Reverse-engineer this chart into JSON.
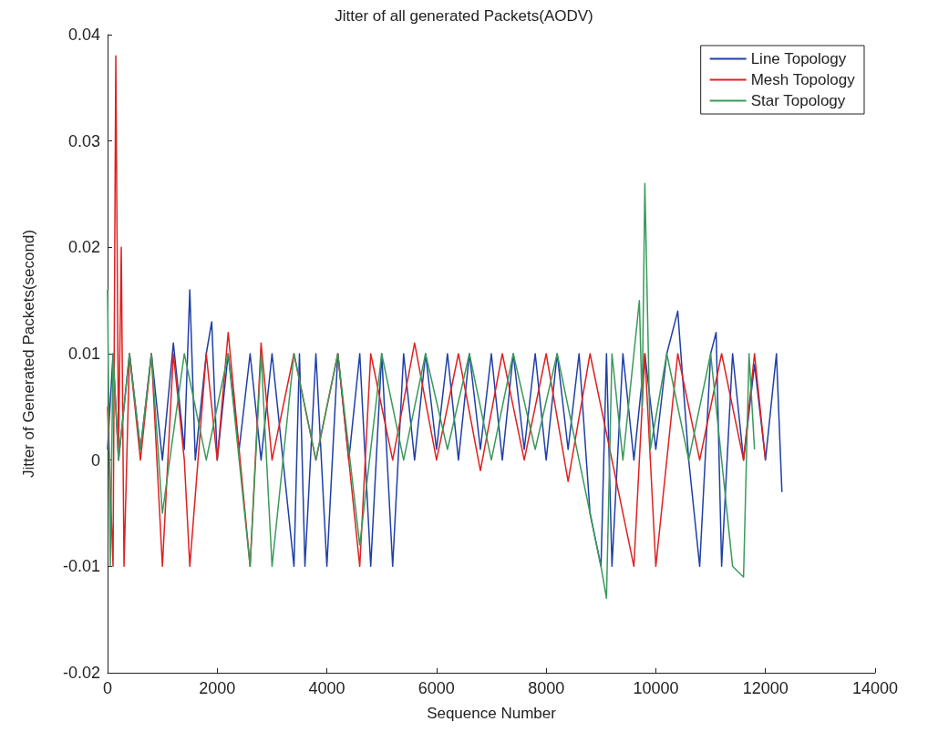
{
  "chart_data": {
    "type": "line",
    "title": "Jitter of all generated Packets(AODV)",
    "xlabel": "Sequence Number",
    "ylabel": "Jitter of Generated Packets(second)",
    "xlim": [
      0,
      14000
    ],
    "xticks": [
      0,
      2000,
      4000,
      6000,
      8000,
      10000,
      12000,
      14000
    ],
    "ylim": [
      -0.02,
      0.04
    ],
    "yticks": [
      -0.02,
      -0.01,
      0,
      0.01,
      0.02,
      0.03,
      0.04
    ],
    "grid": false,
    "legend": "top right",
    "line_style": "solid",
    "marker": "none",
    "series": [
      {
        "name": "Line Topology",
        "color": "#1f3fa8",
        "x": [
          0,
          100,
          200,
          400,
          600,
          800,
          1000,
          1200,
          1400,
          1500,
          1600,
          1800,
          1900,
          2000,
          2200,
          2400,
          2600,
          2800,
          3000,
          3200,
          3400,
          3500,
          3600,
          3800,
          4000,
          4200,
          4400,
          4600,
          4800,
          5000,
          5200,
          5400,
          5600,
          5800,
          6000,
          6200,
          6400,
          6600,
          6800,
          7000,
          7200,
          7400,
          7600,
          7800,
          8000,
          8200,
          8400,
          8600,
          8800,
          9000,
          9100,
          9200,
          9400,
          9600,
          9800,
          10000,
          10200,
          10400,
          10600,
          10800,
          11000,
          11100,
          11200,
          11400,
          11600,
          11800,
          12000,
          12200,
          12300
        ],
        "values": [
          0.001,
          0.01,
          0,
          0.01,
          0.001,
          0.01,
          0,
          0.011,
          0.001,
          0.016,
          0,
          0.01,
          0.013,
          0,
          0.01,
          0.001,
          0.01,
          0,
          0.01,
          0,
          -0.01,
          0.01,
          -0.01,
          0.01,
          -0.01,
          0.01,
          0,
          0.01,
          -0.01,
          0.01,
          -0.01,
          0.01,
          0,
          0.01,
          0.001,
          0.01,
          0,
          0.01,
          0.001,
          0.01,
          0,
          0.01,
          0.001,
          0.01,
          0,
          0.01,
          0.001,
          0.01,
          -0.005,
          -0.01,
          0.01,
          -0.01,
          0.01,
          0,
          0.01,
          0.001,
          0.01,
          0.014,
          0,
          -0.01,
          0.01,
          0.012,
          -0.01,
          0.01,
          0,
          0.009,
          0,
          0.01,
          -0.003
        ]
      },
      {
        "name": "Mesh Topology",
        "color": "#e02020",
        "x": [
          0,
          100,
          150,
          200,
          250,
          300,
          400,
          600,
          800,
          1000,
          1200,
          1400,
          1500,
          1800,
          2000,
          2200,
          2400,
          2600,
          2800,
          3000,
          3400,
          3800,
          4200,
          4600,
          4800,
          5200,
          5600,
          6000,
          6400,
          6800,
          7200,
          7600,
          8000,
          8400,
          8800,
          9200,
          9600,
          9800,
          10000,
          10400,
          10800,
          11200,
          11600,
          11800,
          12000
        ],
        "values": [
          0.005,
          -0.01,
          0.038,
          0.001,
          0.02,
          -0.01,
          0.01,
          0,
          0.01,
          -0.01,
          0.01,
          0,
          -0.01,
          0.01,
          0,
          0.012,
          0.001,
          -0.01,
          0.011,
          0,
          0.01,
          0,
          0.01,
          -0.01,
          0.01,
          0,
          0.011,
          0,
          0.01,
          -0.001,
          0.01,
          0,
          0.01,
          -0.002,
          0.01,
          0,
          -0.01,
          0.01,
          -0.01,
          0.01,
          0,
          0.01,
          0,
          0.01,
          0
        ]
      },
      {
        "name": "Star Topology",
        "color": "#3a9a5a",
        "x": [
          0,
          50,
          100,
          200,
          400,
          600,
          800,
          1000,
          1400,
          1800,
          2200,
          2600,
          2800,
          3000,
          3400,
          3800,
          4200,
          4600,
          5000,
          5400,
          5800,
          6200,
          6600,
          7000,
          7400,
          7800,
          8200,
          8600,
          9000,
          9100,
          9200,
          9400,
          9600,
          9700,
          9750,
          9800,
          9900,
          10200,
          10600,
          11000,
          11400,
          11600,
          11700,
          11800
        ],
        "values": [
          0.016,
          -0.01,
          0.01,
          0,
          0.01,
          0.001,
          0.01,
          -0.005,
          0.01,
          0,
          0.01,
          -0.01,
          0.01,
          -0.01,
          0.01,
          0,
          0.01,
          -0.008,
          0.01,
          0,
          0.01,
          0.001,
          0.01,
          0,
          0.01,
          0.001,
          0.01,
          0,
          -0.01,
          -0.013,
          0.01,
          0,
          0.01,
          0.015,
          0.005,
          0.026,
          0.001,
          0.01,
          0,
          0.01,
          -0.01,
          -0.011,
          0.01,
          0.001
        ]
      }
    ]
  }
}
